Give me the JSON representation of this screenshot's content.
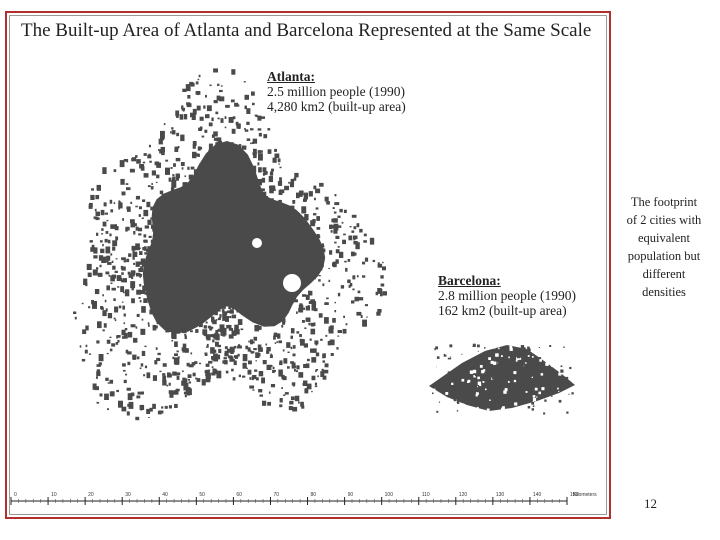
{
  "map": {
    "title": "The Built-up Area of Atlanta and Barcelona Represented at the Same Scale",
    "atlanta": {
      "name": "Atlanta:",
      "population": "2.5 million people (1990)",
      "area": "4,280 km2 (built-up area)"
    },
    "barcelona": {
      "name": "Barcelona:",
      "population": "2.8 million people (1990)",
      "area": "162  km2 (built-up area)"
    },
    "scale": {
      "ticks": [
        "0",
        "10",
        "20",
        "30",
        "40",
        "50",
        "60",
        "70",
        "80",
        "90",
        "100",
        "110",
        "120",
        "130",
        "140",
        "150"
      ],
      "unit": "Kilometers"
    },
    "colors": {
      "urban": "#4a4a4a",
      "frame": "#b03030"
    }
  },
  "side_note": "The footprint\nof 2 cities with\nequivalent\npopulation but\ndifferent\ndensities",
  "page_number": "12"
}
